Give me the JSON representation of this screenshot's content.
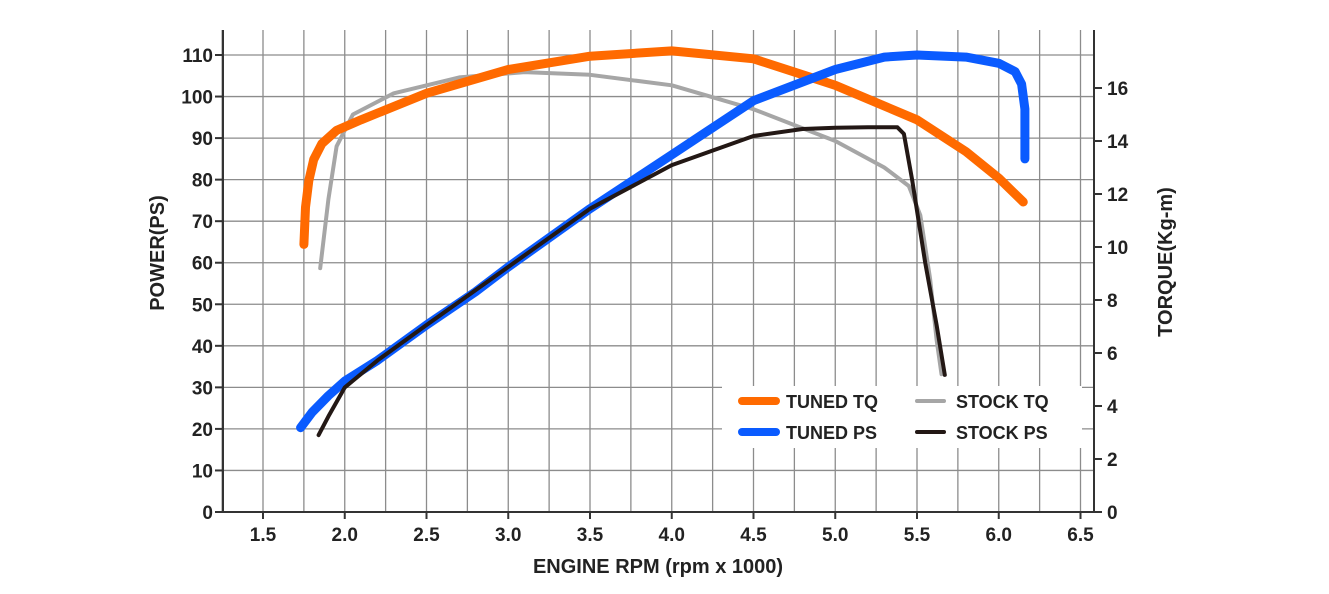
{
  "chart_data": {
    "type": "line",
    "xlabel": "ENGINE RPM (rpm x 1000)",
    "ylabel_left": "POWER(PS)",
    "ylabel_right": "TORQUE(Kg-m)",
    "x_ticks": [
      "1.5",
      "2.0",
      "2.5",
      "3.0",
      "3.5",
      "4.0",
      "4.5",
      "5.0",
      "5.5",
      "6.0",
      "6.5"
    ],
    "y_left_ticks": [
      "0",
      "10",
      "20",
      "30",
      "40",
      "50",
      "60",
      "70",
      "80",
      "90",
      "100",
      "110"
    ],
    "y_right_ticks": [
      "0",
      "2",
      "4",
      "6",
      "8",
      "10",
      "12",
      "14",
      "16"
    ],
    "xlim": [
      1.0,
      6.5
    ],
    "ylim_left": [
      0,
      110
    ],
    "ylim_right": [
      0,
      17.45
    ],
    "series": [
      {
        "name": "TUNED TQ",
        "axis": "right",
        "color": "#FF6A00",
        "points": [
          [
            1.75,
            10.1
          ],
          [
            1.76,
            11.5
          ],
          [
            1.78,
            12.5
          ],
          [
            1.81,
            13.3
          ],
          [
            1.86,
            13.9
          ],
          [
            1.95,
            14.4
          ],
          [
            2.1,
            14.8
          ],
          [
            2.5,
            15.8
          ],
          [
            3.0,
            16.7
          ],
          [
            3.5,
            17.2
          ],
          [
            4.0,
            17.4
          ],
          [
            4.5,
            17.1
          ],
          [
            5.0,
            16.1
          ],
          [
            5.5,
            14.8
          ],
          [
            5.8,
            13.6
          ],
          [
            6.0,
            12.6
          ],
          [
            6.15,
            11.7
          ]
        ]
      },
      {
        "name": "TUNED PS",
        "axis": "left",
        "color": "#0A5BFF",
        "points": [
          [
            1.73,
            20.3
          ],
          [
            1.8,
            24
          ],
          [
            1.9,
            28
          ],
          [
            2.0,
            31.5
          ],
          [
            2.2,
            36.5
          ],
          [
            2.5,
            45
          ],
          [
            2.8,
            53
          ],
          [
            3.0,
            59
          ],
          [
            3.5,
            73
          ],
          [
            4.0,
            86
          ],
          [
            4.5,
            99
          ],
          [
            5.0,
            106.5
          ],
          [
            5.3,
            109.5
          ],
          [
            5.5,
            110
          ],
          [
            5.8,
            109.5
          ],
          [
            6.0,
            108
          ],
          [
            6.1,
            106
          ],
          [
            6.14,
            103
          ],
          [
            6.16,
            97
          ],
          [
            6.16,
            85
          ]
        ]
      },
      {
        "name": "STOCK TQ",
        "axis": "right",
        "color": "#A6A6A6",
        "points": [
          [
            1.85,
            9.2
          ],
          [
            1.9,
            11.8
          ],
          [
            1.95,
            13.8
          ],
          [
            2.05,
            15.0
          ],
          [
            2.3,
            15.8
          ],
          [
            2.7,
            16.4
          ],
          [
            3.1,
            16.6
          ],
          [
            3.5,
            16.5
          ],
          [
            4.0,
            16.1
          ],
          [
            4.5,
            15.2
          ],
          [
            5.0,
            14.0
          ],
          [
            5.3,
            13.0
          ],
          [
            5.45,
            12.3
          ],
          [
            5.52,
            11.2
          ],
          [
            5.58,
            8.8
          ],
          [
            5.62,
            6.5
          ],
          [
            5.65,
            5.2
          ]
        ]
      },
      {
        "name": "STOCK PS",
        "axis": "left",
        "color": "#231815",
        "points": [
          [
            1.84,
            18.5
          ],
          [
            1.9,
            23
          ],
          [
            2.0,
            30
          ],
          [
            2.2,
            36.5
          ],
          [
            2.5,
            45
          ],
          [
            3.0,
            59
          ],
          [
            3.5,
            73
          ],
          [
            4.0,
            83.5
          ],
          [
            4.5,
            90.5
          ],
          [
            4.8,
            92.2
          ],
          [
            5.0,
            92.5
          ],
          [
            5.2,
            92.6
          ],
          [
            5.38,
            92.6
          ],
          [
            5.42,
            91
          ],
          [
            5.47,
            80
          ],
          [
            5.55,
            60
          ],
          [
            5.62,
            45
          ],
          [
            5.67,
            33
          ]
        ]
      }
    ],
    "legend": {
      "position": "bottom-right",
      "entries": [
        {
          "label": "TUNED TQ",
          "color": "#FF6A00"
        },
        {
          "label": "STOCK TQ",
          "color": "#A6A6A6"
        },
        {
          "label": "TUNED PS",
          "color": "#0A5BFF"
        },
        {
          "label": "STOCK PS",
          "color": "#231815"
        }
      ]
    }
  }
}
